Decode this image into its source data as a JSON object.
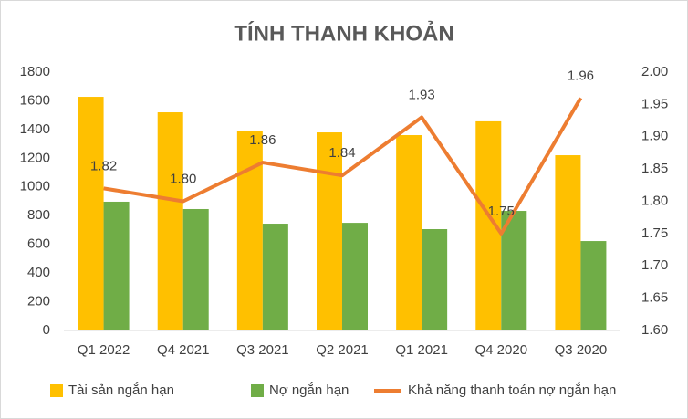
{
  "chart_data": {
    "type": "combo",
    "title": "TÍNH THANH KHOẢN",
    "categories": [
      "Q1 2022",
      "Q4 2021",
      "Q3 2021",
      "Q2 2021",
      "Q1 2021",
      "Q4 2020",
      "Q3 2020"
    ],
    "series": [
      {
        "name": "Tài sản ngắn hạn",
        "type": "bar",
        "color": "#ffc000",
        "values": [
          1628,
          1520,
          1393,
          1380,
          1361,
          1457,
          1221
        ]
      },
      {
        "name": "Nợ ngắn hạn",
        "type": "bar",
        "color": "#70ad47",
        "values": [
          897,
          846,
          744,
          750,
          706,
          833,
          623
        ]
      },
      {
        "name": "Khả năng thanh toán nợ ngắn hạn",
        "type": "line",
        "axis": "y2",
        "color": "#ed7d31",
        "values": [
          1.82,
          1.8,
          1.86,
          1.84,
          1.93,
          1.75,
          1.96
        ],
        "value_labels": [
          "1.82",
          "1.80",
          "1.86",
          "1.84",
          "1.93",
          "1.75",
          "1.96"
        ]
      }
    ],
    "ylim": [
      0,
      1800
    ],
    "yticks": [
      0,
      200,
      400,
      600,
      800,
      1000,
      1200,
      1400,
      1600,
      1800
    ],
    "y2lim": [
      1.6,
      2.0
    ],
    "y2ticks": [
      {
        "value": 1.6,
        "label": "1.60"
      },
      {
        "value": 1.65,
        "label": "1.65"
      },
      {
        "value": 1.7,
        "label": "1.70"
      },
      {
        "value": 1.75,
        "label": "1.75"
      },
      {
        "value": 1.8,
        "label": "1.80"
      },
      {
        "value": 1.85,
        "label": "1.85"
      },
      {
        "value": 1.9,
        "label": "1.90"
      },
      {
        "value": 1.95,
        "label": "1.95"
      },
      {
        "value": 2.0,
        "label": "2.00"
      }
    ],
    "grid": false
  }
}
